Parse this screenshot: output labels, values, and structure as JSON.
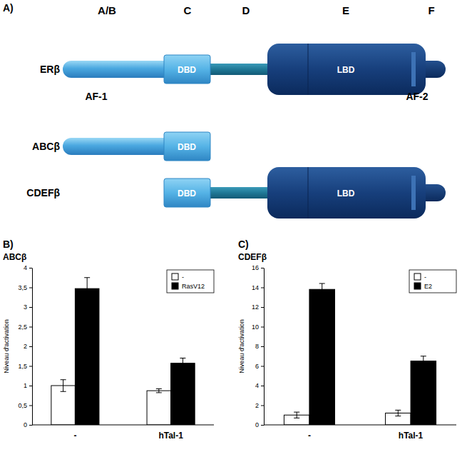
{
  "diagram": {
    "label": "A)",
    "regions": [
      "A/B",
      "C",
      "D",
      "E",
      "F"
    ],
    "constructs": [
      {
        "name": "ERβ",
        "domains": [
          "DBD",
          "LBD"
        ],
        "af": [
          "AF-1",
          "AF-2"
        ]
      },
      {
        "name": "ABCβ",
        "domains": [
          "DBD"
        ]
      },
      {
        "name": "CDEFβ",
        "domains": [
          "DBD",
          "LBD"
        ]
      }
    ]
  },
  "chart_data": [
    {
      "type": "bar",
      "annotations": [
        "B)"
      ],
      "title": "ABCβ",
      "y_label": "Niveau d'activation",
      "categories": [
        "-",
        "hTal-1"
      ],
      "series": [
        {
          "name": "-",
          "color": "#ffffff",
          "values": [
            1,
            0.87
          ],
          "errors": [
            0.15,
            0.05
          ]
        },
        {
          "name": "RasV12",
          "color": "#000000",
          "values": [
            3.47,
            1.57
          ],
          "errors": [
            0.28,
            0.13
          ]
        }
      ],
      "ylim": [
        0,
        4
      ],
      "yticks": [
        0,
        {
          "value": 0.5,
          "label": "0,5"
        },
        1,
        {
          "value": 1.5,
          "label": "1,5"
        },
        2,
        {
          "value": 2.5,
          "label": "2,5"
        },
        3,
        {
          "value": 3.5,
          "label": "3,5"
        },
        4
      ],
      "legend": "upper right"
    },
    {
      "type": "bar",
      "annotations": [
        "C)"
      ],
      "title": "CDEFβ",
      "y_label": "Niveau d'activation",
      "categories": [
        "-",
        "hTal-1"
      ],
      "series": [
        {
          "name": "-",
          "color": "#ffffff",
          "values": [
            1,
            1.2
          ],
          "errors": [
            0.3,
            0.3
          ]
        },
        {
          "name": "E2",
          "color": "#000000",
          "values": [
            13.8,
            6.5
          ],
          "errors": [
            0.6,
            0.5
          ]
        }
      ],
      "ylim": [
        0,
        16
      ],
      "yticks": [
        0,
        2,
        4,
        6,
        8,
        10,
        12,
        14,
        16
      ],
      "legend": "upper right"
    }
  ]
}
